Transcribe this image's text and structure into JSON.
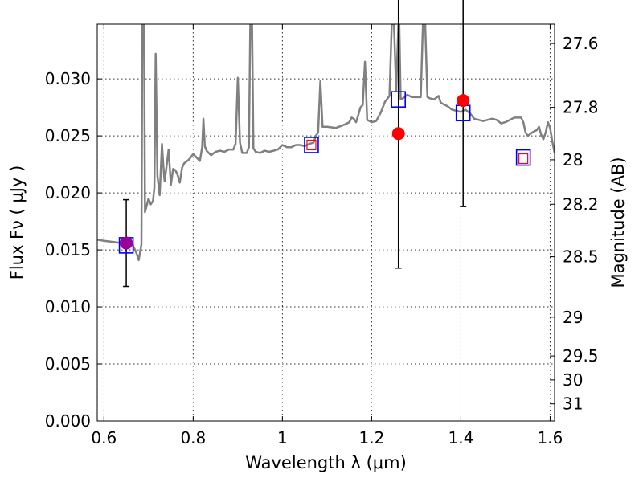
{
  "chart_data": {
    "type": "line",
    "title": "",
    "xlabel": "Wavelength  λ (μm)",
    "ylabel": "Flux  Fν  ( μJy )",
    "y2label": "Magnitude (AB)",
    "xlim": [
      0.585,
      1.61
    ],
    "ylim": [
      0.0,
      0.0348
    ],
    "grid": true,
    "x_ticks": [
      0.6,
      0.8,
      1.0,
      1.2,
      1.4,
      1.6
    ],
    "x_tick_labels": [
      "0.6",
      "0.8",
      "1",
      "1.2",
      "1.4",
      "1.6"
    ],
    "y_ticks": [
      0.0,
      0.005,
      0.01,
      0.015,
      0.02,
      0.025,
      0.03
    ],
    "y_tick_labels": [
      "0.000",
      "0.005",
      "0.010",
      "0.015",
      "0.020",
      "0.025",
      "0.030"
    ],
    "y2_ticks": [
      {
        "label": "27.6",
        "flux": 0.0331
      },
      {
        "label": "27.8",
        "flux": 0.0275
      },
      {
        "label": "28",
        "flux": 0.0229
      },
      {
        "label": "28.2",
        "flux": 0.019
      },
      {
        "label": "28.5",
        "flux": 0.0144
      },
      {
        "label": "29",
        "flux": 0.0091
      },
      {
        "label": "29.5",
        "flux": 0.0057
      },
      {
        "label": "30",
        "flux": 0.0036
      },
      {
        "label": "31",
        "flux": 0.0015
      }
    ],
    "colors": {
      "spectrum": "#808080",
      "model_squares": "#0000ff",
      "observed_points": "#ff0000",
      "overlap_point": "#990099",
      "error_bars": "#000000"
    },
    "series": [
      {
        "type": "line",
        "points": [
          [
            0.585,
            0.0159
          ],
          [
            0.6,
            0.0158
          ],
          [
            0.62,
            0.0157
          ],
          [
            0.64,
            0.0156
          ],
          [
            0.655,
            0.0155
          ],
          [
            0.665,
            0.0154
          ],
          [
            0.672,
            0.0148
          ],
          [
            0.678,
            0.0141
          ],
          [
            0.684,
            0.0155
          ],
          [
            0.686,
            0.0348
          ],
          [
            0.69,
            0.0348
          ],
          [
            0.692,
            0.0183
          ],
          [
            0.696,
            0.0189
          ],
          [
            0.7,
            0.0195
          ],
          [
            0.705,
            0.019
          ],
          [
            0.71,
            0.0193
          ],
          [
            0.713,
            0.0205
          ],
          [
            0.716,
            0.0322
          ],
          [
            0.72,
            0.0215
          ],
          [
            0.725,
            0.0198
          ],
          [
            0.728,
            0.0225
          ],
          [
            0.73,
            0.0243
          ],
          [
            0.733,
            0.0224
          ],
          [
            0.736,
            0.021
          ],
          [
            0.74,
            0.0222
          ],
          [
            0.745,
            0.0238
          ],
          [
            0.75,
            0.0207
          ],
          [
            0.755,
            0.0221
          ],
          [
            0.76,
            0.022
          ],
          [
            0.765,
            0.0216
          ],
          [
            0.77,
            0.0209
          ],
          [
            0.775,
            0.0222
          ],
          [
            0.78,
            0.0226
          ],
          [
            0.79,
            0.0229
          ],
          [
            0.8,
            0.0234
          ],
          [
            0.81,
            0.023
          ],
          [
            0.815,
            0.0228
          ],
          [
            0.82,
            0.024
          ],
          [
            0.823,
            0.0265
          ],
          [
            0.826,
            0.0241
          ],
          [
            0.83,
            0.0237
          ],
          [
            0.84,
            0.0233
          ],
          [
            0.85,
            0.0236
          ],
          [
            0.86,
            0.0237
          ],
          [
            0.87,
            0.0236
          ],
          [
            0.88,
            0.0238
          ],
          [
            0.89,
            0.0238
          ],
          [
            0.895,
            0.0243
          ],
          [
            0.9,
            0.0301
          ],
          [
            0.905,
            0.0244
          ],
          [
            0.91,
            0.0235
          ],
          [
            0.92,
            0.0235
          ],
          [
            0.925,
            0.024
          ],
          [
            0.928,
            0.0348
          ],
          [
            0.932,
            0.0348
          ],
          [
            0.935,
            0.0239
          ],
          [
            0.94,
            0.0236
          ],
          [
            0.95,
            0.0235
          ],
          [
            0.96,
            0.0237
          ],
          [
            0.97,
            0.0236
          ],
          [
            0.98,
            0.0237
          ],
          [
            0.99,
            0.0238
          ],
          [
            1.0,
            0.0242
          ],
          [
            1.01,
            0.024
          ],
          [
            1.02,
            0.024
          ],
          [
            1.03,
            0.0242
          ],
          [
            1.04,
            0.0242
          ],
          [
            1.05,
            0.0241
          ],
          [
            1.06,
            0.0243
          ],
          [
            1.07,
            0.0244
          ],
          [
            1.075,
            0.025
          ],
          [
            1.08,
            0.0253
          ],
          [
            1.085,
            0.0298
          ],
          [
            1.09,
            0.0258
          ],
          [
            1.1,
            0.0258
          ],
          [
            1.12,
            0.0257
          ],
          [
            1.14,
            0.026
          ],
          [
            1.15,
            0.0262
          ],
          [
            1.155,
            0.0266
          ],
          [
            1.16,
            0.0265
          ],
          [
            1.165,
            0.0262
          ],
          [
            1.17,
            0.0268
          ],
          [
            1.175,
            0.0275
          ],
          [
            1.18,
            0.0277
          ],
          [
            1.185,
            0.0315
          ],
          [
            1.19,
            0.0264
          ],
          [
            1.2,
            0.0262
          ],
          [
            1.21,
            0.0263
          ],
          [
            1.22,
            0.027
          ],
          [
            1.23,
            0.028
          ],
          [
            1.24,
            0.0285
          ],
          [
            1.245,
            0.0348
          ],
          [
            1.25,
            0.0348
          ],
          [
            1.255,
            0.029
          ],
          [
            1.26,
            0.0348
          ],
          [
            1.262,
            0.0348
          ],
          [
            1.265,
            0.0282
          ],
          [
            1.27,
            0.0283
          ],
          [
            1.28,
            0.0286
          ],
          [
            1.29,
            0.0284
          ],
          [
            1.3,
            0.0284
          ],
          [
            1.31,
            0.0284
          ],
          [
            1.315,
            0.0348
          ],
          [
            1.32,
            0.0348
          ],
          [
            1.325,
            0.0284
          ],
          [
            1.33,
            0.0283
          ],
          [
            1.34,
            0.0282
          ],
          [
            1.35,
            0.0285
          ],
          [
            1.355,
            0.0279
          ],
          [
            1.36,
            0.0278
          ],
          [
            1.37,
            0.0276
          ],
          [
            1.38,
            0.0273
          ],
          [
            1.39,
            0.0272
          ],
          [
            1.4,
            0.0271
          ],
          [
            1.41,
            0.0273
          ],
          [
            1.42,
            0.027
          ],
          [
            1.43,
            0.0265
          ],
          [
            1.44,
            0.0264
          ],
          [
            1.45,
            0.0263
          ],
          [
            1.46,
            0.0264
          ],
          [
            1.47,
            0.0265
          ],
          [
            1.48,
            0.0264
          ],
          [
            1.49,
            0.0261
          ],
          [
            1.5,
            0.0262
          ],
          [
            1.51,
            0.0264
          ],
          [
            1.52,
            0.0266
          ],
          [
            1.53,
            0.0266
          ],
          [
            1.535,
            0.0266
          ],
          [
            1.54,
            0.0262
          ],
          [
            1.545,
            0.0253
          ],
          [
            1.55,
            0.025
          ],
          [
            1.56,
            0.0253
          ],
          [
            1.57,
            0.0255
          ],
          [
            1.575,
            0.0258
          ],
          [
            1.58,
            0.0251
          ],
          [
            1.585,
            0.0247
          ],
          [
            1.59,
            0.0253
          ],
          [
            1.595,
            0.0262
          ],
          [
            1.6,
            0.0257
          ],
          [
            1.605,
            0.0245
          ],
          [
            1.61,
            0.0235
          ]
        ]
      },
      {
        "type": "scatter",
        "marker": "square",
        "points": [
          [
            0.65,
            0.0154
          ],
          [
            1.065,
            0.0242
          ],
          [
            1.26,
            0.0282
          ],
          [
            1.405,
            0.027
          ],
          [
            1.54,
            0.0231
          ]
        ]
      },
      {
        "type": "scatter",
        "marker": "square-small",
        "points": [
          [
            1.065,
            0.0242
          ],
          [
            1.54,
            0.023
          ]
        ]
      },
      {
        "type": "scatter",
        "marker": "circle",
        "points": [
          [
            0.65,
            0.0156
          ],
          [
            1.26,
            0.0252
          ],
          [
            1.405,
            0.0281
          ]
        ],
        "errors": [
          0.0038,
          0.0118,
          0.0093
        ]
      }
    ]
  }
}
